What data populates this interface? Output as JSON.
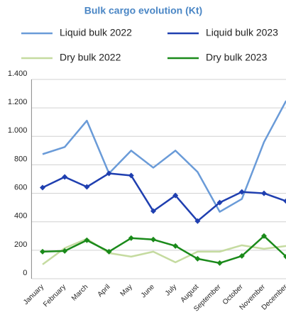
{
  "chart_data": {
    "type": "line",
    "title": "Bulk cargo evolution (Kt)",
    "categories": [
      "January",
      "February",
      "March",
      "April",
      "May",
      "June",
      "July",
      "August",
      "September",
      "October",
      "November",
      "December"
    ],
    "series": [
      {
        "name": "Liquid bulk 2022",
        "color": "#6a9bd8",
        "values": [
          875,
          925,
          1110,
          740,
          900,
          780,
          900,
          750,
          470,
          560,
          960,
          1250
        ]
      },
      {
        "name": "Liquid bulk 2023",
        "color": "#1f3fb0",
        "marker": "diamond",
        "values": [
          640,
          715,
          645,
          740,
          725,
          475,
          585,
          405,
          535,
          610,
          600,
          545
        ]
      },
      {
        "name": "Dry bulk 2022",
        "color": "#c5dba0",
        "values": [
          100,
          215,
          280,
          180,
          155,
          190,
          115,
          190,
          190,
          235,
          210,
          230
        ]
      },
      {
        "name": "Dry bulk 2023",
        "color": "#1a8a1a",
        "marker": "diamond",
        "values": [
          190,
          195,
          270,
          190,
          285,
          275,
          230,
          140,
          110,
          160,
          300,
          155
        ]
      }
    ],
    "ylim": [
      0,
      1400
    ],
    "yticks": [
      0,
      200,
      400,
      600,
      800,
      {
        "value": 1000,
        "label": "1.000"
      },
      {
        "value": 1200,
        "label": "1.200"
      },
      {
        "value": 1400,
        "label": "1.400"
      }
    ],
    "grid": true
  }
}
